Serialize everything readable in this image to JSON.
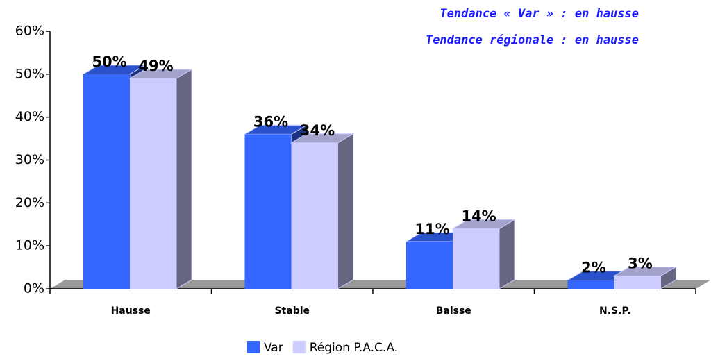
{
  "chart_data": {
    "type": "bar3d",
    "annotations": [
      "Tendance « Var » : en hausse",
      "Tendance régionale : en hausse"
    ],
    "categories": [
      "Hausse",
      "Stable",
      "Baisse",
      "N.S.P."
    ],
    "series": [
      {
        "name": "Var",
        "color": "#3366ff",
        "values": [
          50,
          36,
          11,
          2
        ],
        "value_labels": [
          "50%",
          "36%",
          "11%",
          "2%"
        ]
      },
      {
        "name": "Région P.A.C.A.",
        "color": "#ccccff",
        "values": [
          49,
          34,
          14,
          3
        ],
        "value_labels": [
          "49%",
          "34%",
          "14%",
          "3%"
        ]
      }
    ],
    "ylim": [
      0,
      60
    ],
    "yticks": [
      {
        "value": 0,
        "label": "0%"
      },
      {
        "value": 10,
        "label": "10%"
      },
      {
        "value": 20,
        "label": "20%"
      },
      {
        "value": 30,
        "label": "30%"
      },
      {
        "value": 40,
        "label": "40%"
      },
      {
        "value": 50,
        "label": "50%"
      },
      {
        "value": 60,
        "label": "60%"
      }
    ],
    "legend": "bottom"
  }
}
